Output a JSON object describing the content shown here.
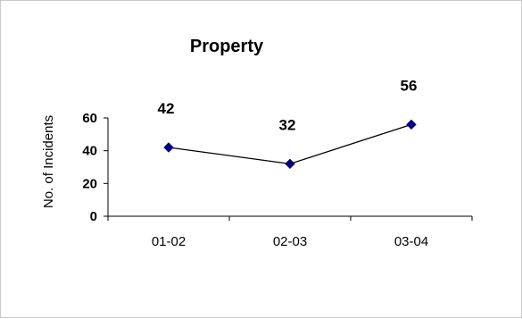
{
  "chart_data": {
    "type": "line",
    "title": "Property",
    "xlabel": "",
    "ylabel": "No. of Incidents",
    "categories": [
      "01-02",
      "02-03",
      "03-04"
    ],
    "series": [
      {
        "values": [
          42,
          32,
          56
        ],
        "data_labels": [
          "42",
          "32",
          "56"
        ]
      }
    ],
    "yticks": [
      "0",
      "20",
      "40",
      "60"
    ],
    "ylim": [
      0,
      60
    ],
    "grid": false,
    "legend": "none",
    "colors": {
      "line": "#000000",
      "marker": "#000080",
      "axis": "#000000"
    }
  }
}
